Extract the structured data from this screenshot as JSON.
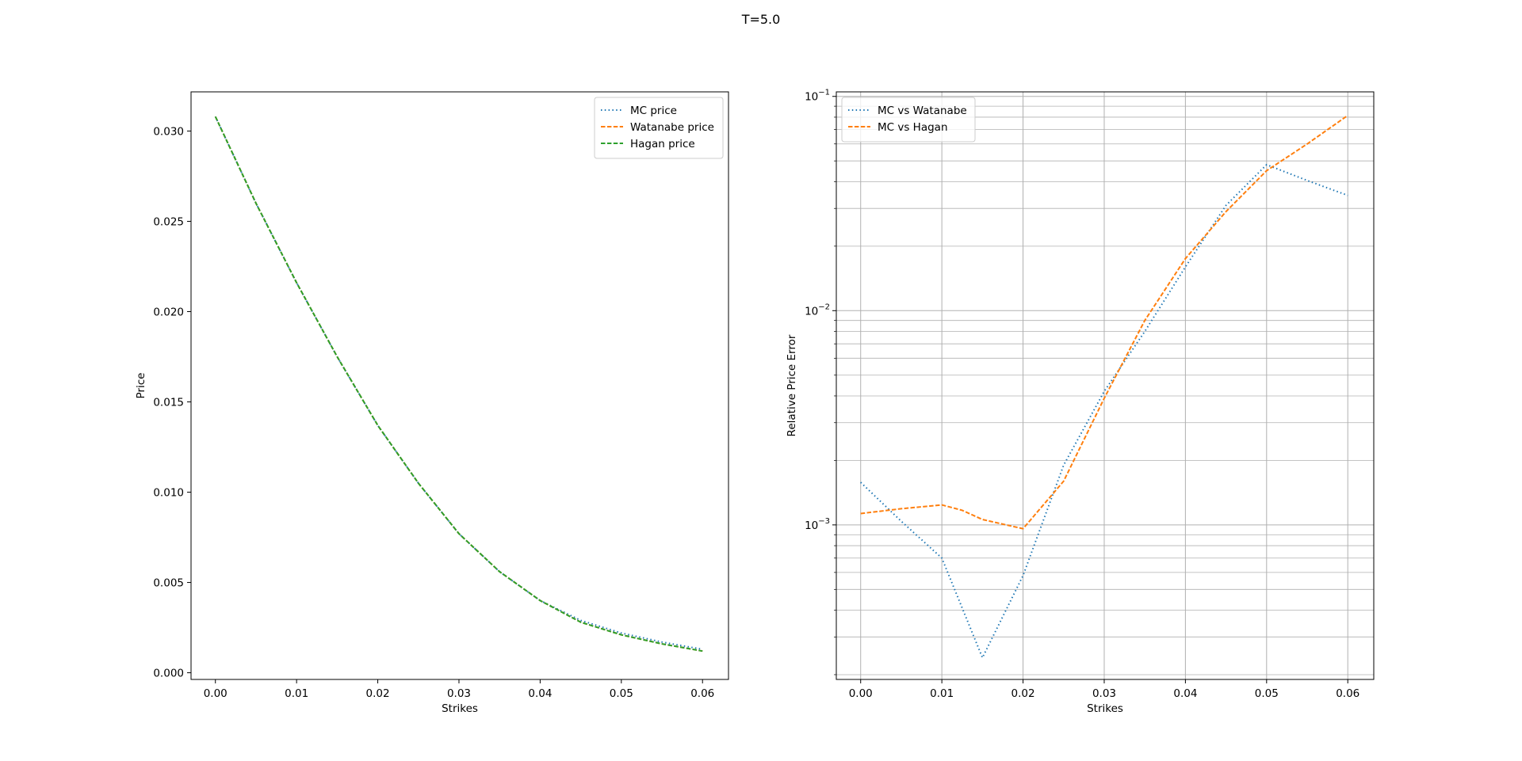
{
  "suptitle": "T=5.0",
  "chart_data": [
    {
      "type": "line",
      "title": "",
      "xlabel": "Strikes",
      "ylabel": "Price",
      "xlim": [
        -0.003,
        0.0632
      ],
      "ylim": [
        -0.00037,
        0.03217
      ],
      "yscale": "linear",
      "grid": false,
      "legend_position": "upper right",
      "x_ticks": [
        0.0,
        0.01,
        0.02,
        0.03,
        0.04,
        0.05,
        0.06
      ],
      "x_tick_labels": [
        "0.00",
        "0.01",
        "0.02",
        "0.03",
        "0.04",
        "0.05",
        "0.06"
      ],
      "y_ticks": [
        0.0,
        0.005,
        0.01,
        0.015,
        0.02,
        0.025,
        0.03
      ],
      "y_tick_labels": [
        "0.000",
        "0.005",
        "0.010",
        "0.015",
        "0.020",
        "0.025",
        "0.030"
      ],
      "x": [
        0.0,
        0.005,
        0.01,
        0.015,
        0.02,
        0.025,
        0.03,
        0.035,
        0.04,
        0.045,
        0.05,
        0.055,
        0.06
      ],
      "series": [
        {
          "name": "MC price",
          "color": "#1f77b4",
          "style": "dotted",
          "values": [
            0.0308,
            0.026,
            0.0216,
            0.0175,
            0.0137,
            0.0105,
            0.0077,
            0.0056,
            0.004,
            0.0029,
            0.0022,
            0.0017,
            0.0013
          ]
        },
        {
          "name": "Watanabe price",
          "color": "#ff7f0e",
          "style": "dashed",
          "values": [
            0.0308,
            0.026,
            0.0216,
            0.0175,
            0.0137,
            0.0105,
            0.0077,
            0.0056,
            0.004,
            0.0028,
            0.0021,
            0.0016,
            0.0012
          ]
        },
        {
          "name": "Hagan price",
          "color": "#2ca02c",
          "style": "dashed",
          "values": [
            0.0308,
            0.026,
            0.0216,
            0.0175,
            0.0137,
            0.0105,
            0.0077,
            0.0056,
            0.004,
            0.0028,
            0.0021,
            0.0016,
            0.0012
          ]
        }
      ]
    },
    {
      "type": "line",
      "title": "",
      "xlabel": "Strikes",
      "ylabel": "Relative Price Error",
      "xlim": [
        -0.003,
        0.0632
      ],
      "ylim": [
        0.00019,
        0.105
      ],
      "yscale": "log",
      "grid": true,
      "legend_position": "upper left",
      "x_ticks": [
        0.0,
        0.01,
        0.02,
        0.03,
        0.04,
        0.05,
        0.06
      ],
      "x_tick_labels": [
        "0.00",
        "0.01",
        "0.02",
        "0.03",
        "0.04",
        "0.05",
        "0.06"
      ],
      "y_major_ticks": [
        0.001,
        0.01,
        0.1
      ],
      "y_tick_labels": [
        {
          "base": "10",
          "exp": "−3"
        },
        {
          "base": "10",
          "exp": "−2"
        },
        {
          "base": "10",
          "exp": "−1"
        }
      ],
      "series": [
        {
          "name": "MC vs Watanabe",
          "color": "#1f77b4",
          "style": "dotted",
          "x": [
            0.0,
            0.005,
            0.01,
            0.015,
            0.02,
            0.025,
            0.03,
            0.035,
            0.04,
            0.045,
            0.05,
            0.055,
            0.06
          ],
          "values": [
            0.00158,
            0.00104,
            0.0007,
            0.00024,
            0.00058,
            0.0019,
            0.0042,
            0.008,
            0.016,
            0.031,
            0.048,
            0.0405,
            0.0345
          ]
        },
        {
          "name": "MC vs Hagan",
          "color": "#ff7f0e",
          "style": "dashed",
          "x": [
            0.0,
            0.005,
            0.01,
            0.0125,
            0.015,
            0.02,
            0.025,
            0.03,
            0.035,
            0.04,
            0.045,
            0.05,
            0.055,
            0.06
          ],
          "values": [
            0.00113,
            0.00119,
            0.00124,
            0.00117,
            0.00106,
            0.00096,
            0.0016,
            0.0039,
            0.009,
            0.0175,
            0.029,
            0.045,
            0.06,
            0.0815
          ]
        }
      ]
    }
  ]
}
